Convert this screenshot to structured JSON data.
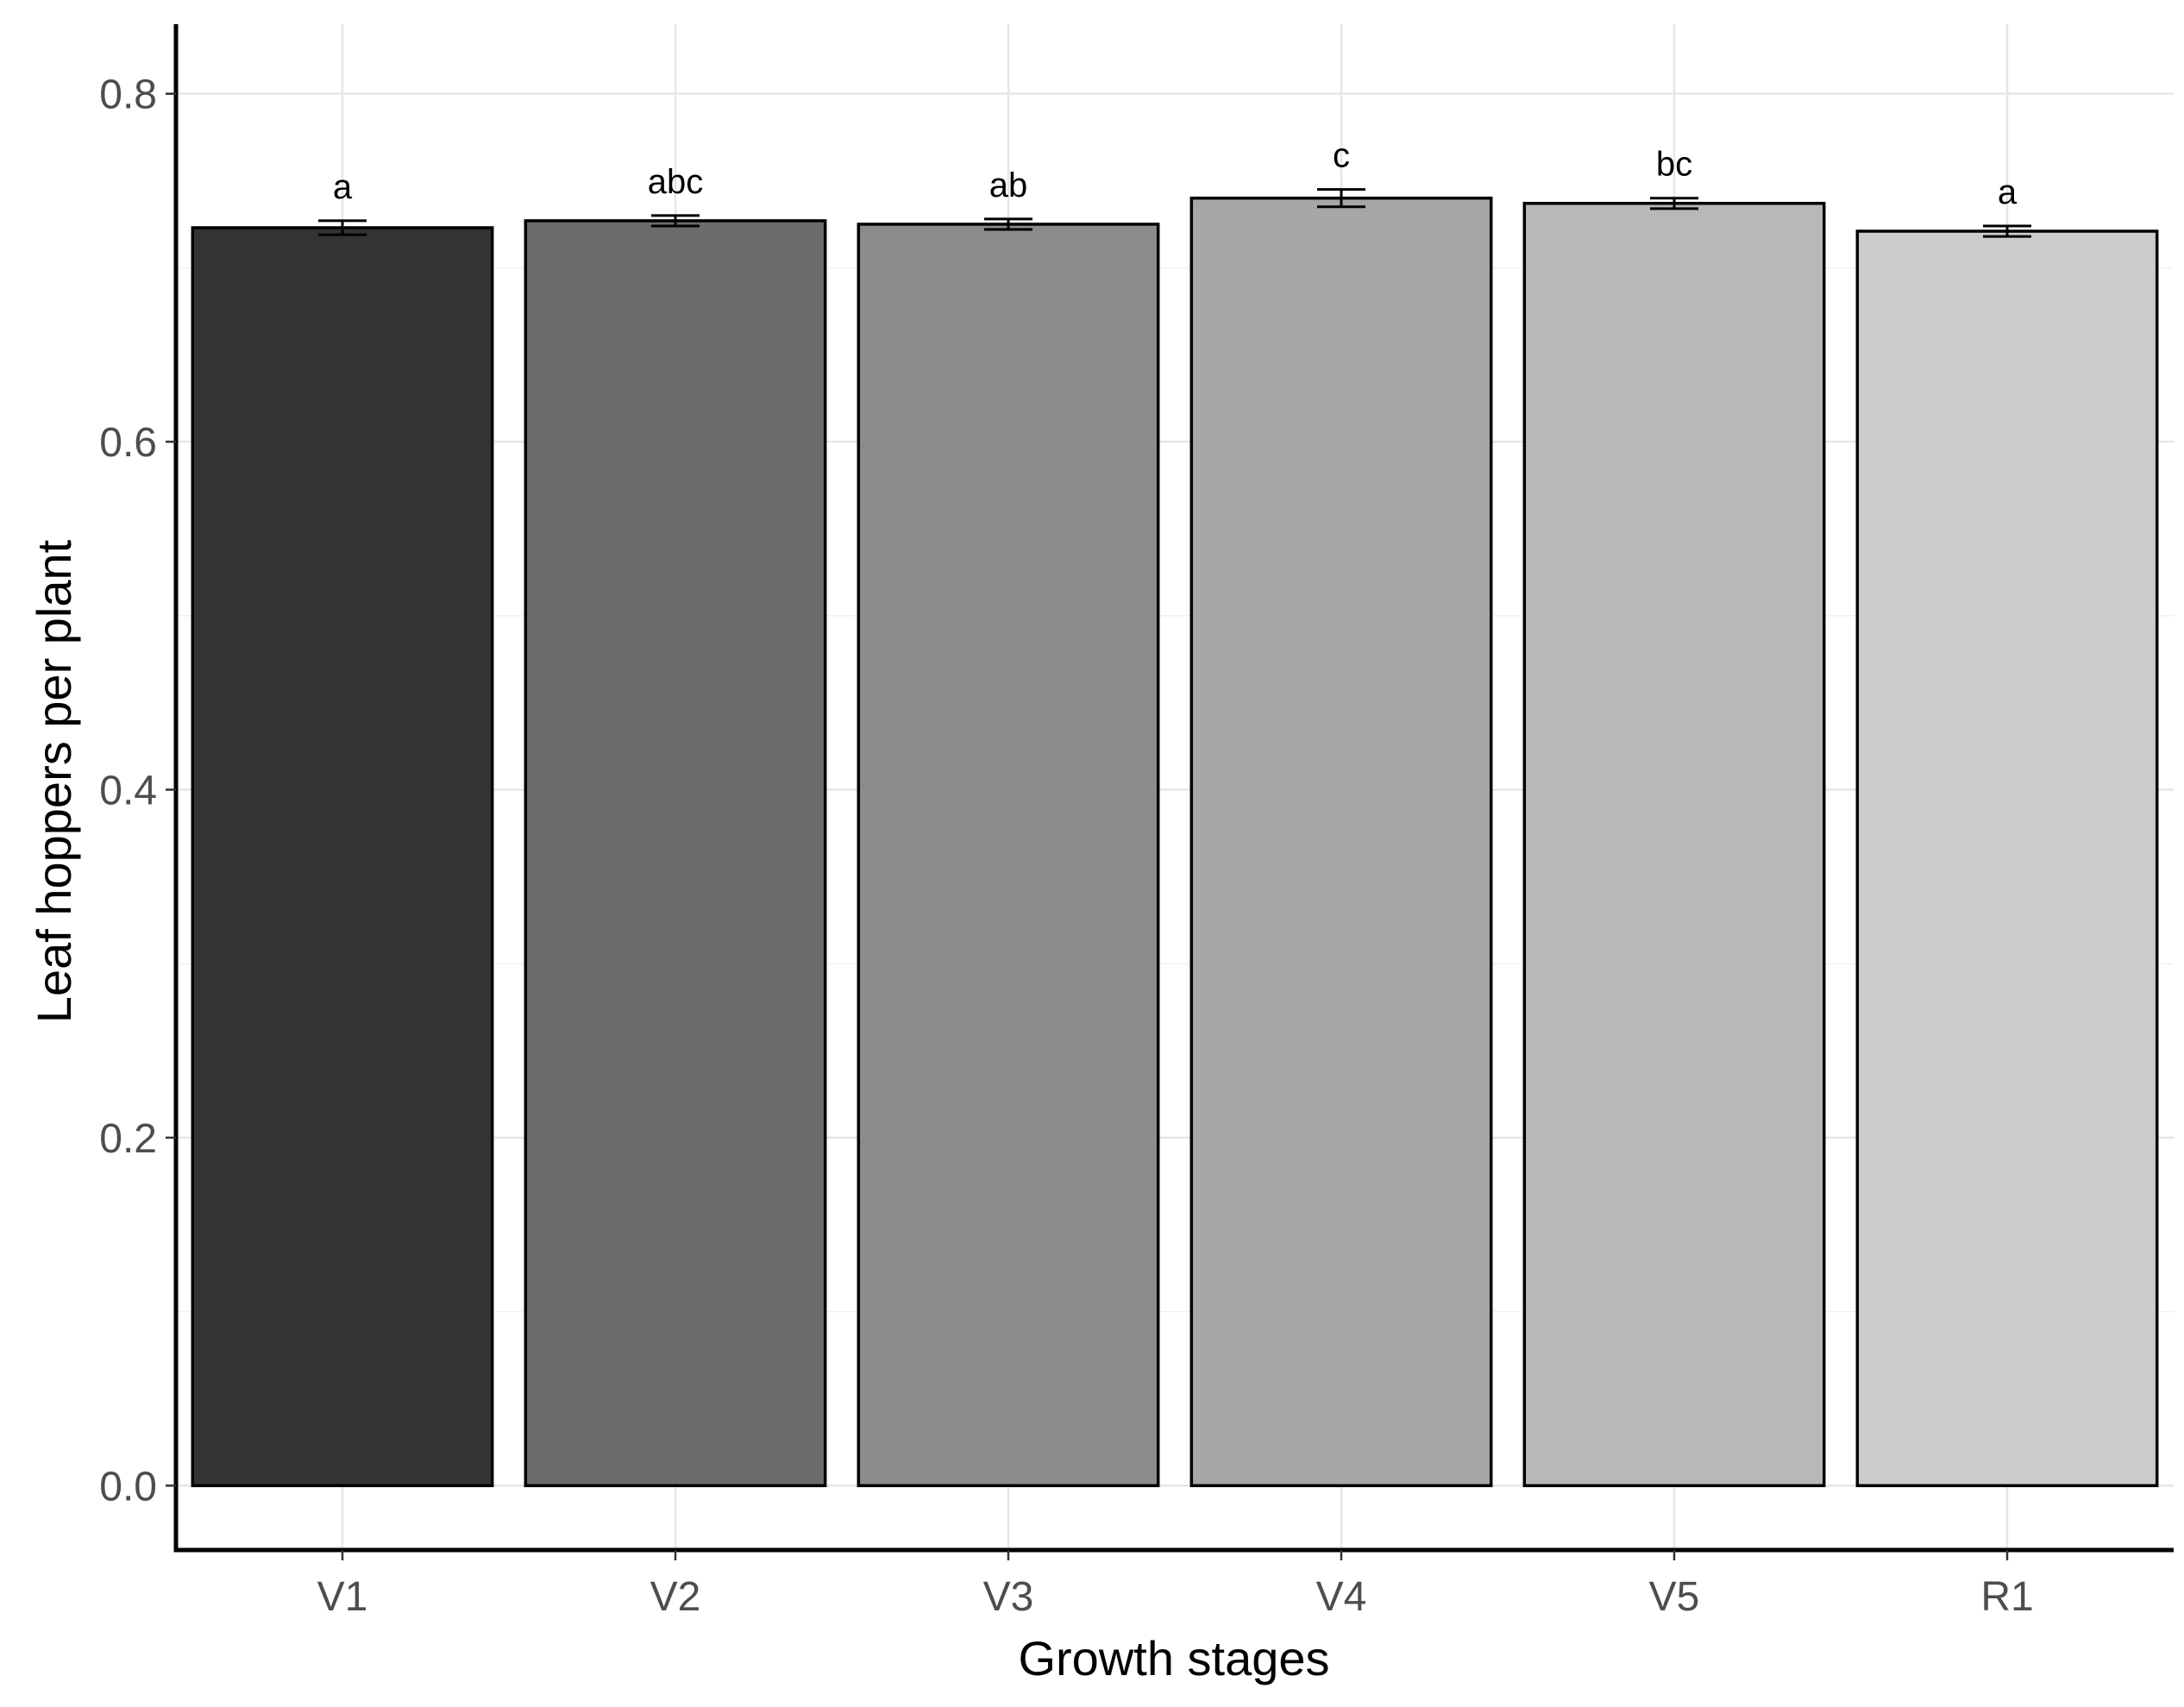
{
  "chart_data": {
    "type": "bar",
    "categories": [
      "V1",
      "V2",
      "V3",
      "V4",
      "V5",
      "R1"
    ],
    "values": [
      0.723,
      0.727,
      0.725,
      0.74,
      0.737,
      0.721
    ],
    "error": [
      0.004,
      0.003,
      0.003,
      0.005,
      0.003,
      0.003
    ],
    "significance_labels": [
      "a",
      "abc",
      "ab",
      "c",
      "bc",
      "a"
    ],
    "bar_colors": [
      "#333333",
      "#6b6b6b",
      "#8c8c8c",
      "#a6a6a6",
      "#b8b8b8",
      "#cccccc"
    ],
    "title": "",
    "xlabel": "Growth stages",
    "ylabel": "Leaf hoppers per plant",
    "ylim": [
      -0.037,
      0.84
    ],
    "yticks": [
      0.0,
      0.2,
      0.4,
      0.6,
      0.8
    ],
    "ytick_labels": [
      "0.0",
      "0.2",
      "0.4",
      "0.6",
      "0.8"
    ],
    "grid": true,
    "legend": "none"
  }
}
